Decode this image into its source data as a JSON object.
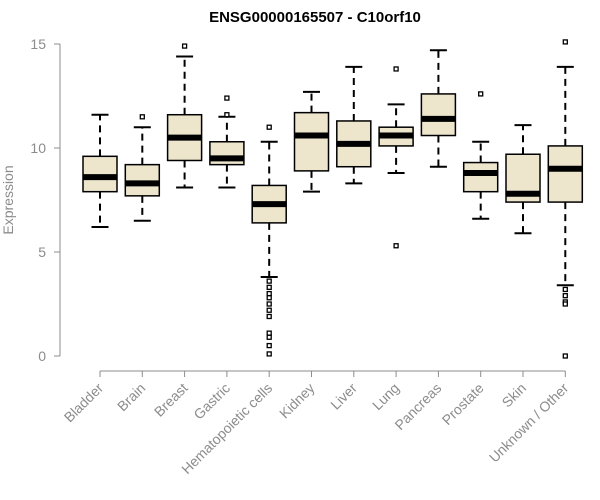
{
  "chart_data": {
    "type": "boxplot",
    "title": "ENSG00000165507 - C10orf10",
    "xlabel": "",
    "ylabel": "Expression",
    "ylim": [
      0,
      15
    ],
    "yticks": [
      0,
      5,
      10,
      15
    ],
    "box_fill": "#ede6cc",
    "stroke": "#000000",
    "axis_color": "#8c8c8c",
    "categories": [
      "Bladder",
      "Brain",
      "Breast",
      "Gastric",
      "Hematopoietic cells",
      "Kidney",
      "Liver",
      "Lung",
      "Pancreas",
      "Prostate",
      "Skin",
      "Unknown / Other"
    ],
    "boxes": [
      {
        "name": "Bladder",
        "min": 6.2,
        "q1": 7.9,
        "median": 8.6,
        "q3": 9.6,
        "max": 11.6,
        "outliers": []
      },
      {
        "name": "Brain",
        "min": 6.5,
        "q1": 7.7,
        "median": 8.3,
        "q3": 9.2,
        "max": 11.0,
        "outliers": [
          11.5
        ]
      },
      {
        "name": "Breast",
        "min": 8.1,
        "q1": 9.4,
        "median": 10.5,
        "q3": 11.6,
        "max": 14.4,
        "outliers": [
          14.9
        ]
      },
      {
        "name": "Gastric",
        "min": 8.1,
        "q1": 9.2,
        "median": 9.5,
        "q3": 10.3,
        "max": 11.5,
        "outliers": [
          11.6,
          12.4
        ]
      },
      {
        "name": "Hematopoietic cells",
        "min": 3.8,
        "q1": 6.4,
        "median": 7.3,
        "q3": 8.2,
        "max": 10.3,
        "outliers": [
          11.0,
          3.6,
          3.3,
          3.0,
          2.8,
          2.5,
          2.2,
          1.9,
          1.1,
          0.9,
          0.5,
          0.1
        ]
      },
      {
        "name": "Kidney",
        "min": 7.9,
        "q1": 8.9,
        "median": 10.6,
        "q3": 11.7,
        "max": 12.7,
        "outliers": []
      },
      {
        "name": "Liver",
        "min": 8.3,
        "q1": 9.1,
        "median": 10.2,
        "q3": 11.3,
        "max": 13.9,
        "outliers": []
      },
      {
        "name": "Lung",
        "min": 8.8,
        "q1": 10.1,
        "median": 10.6,
        "q3": 11.0,
        "max": 12.1,
        "outliers": [
          13.8,
          5.3
        ]
      },
      {
        "name": "Pancreas",
        "min": 9.1,
        "q1": 10.6,
        "median": 11.4,
        "q3": 12.6,
        "max": 14.7,
        "outliers": []
      },
      {
        "name": "Prostate",
        "min": 6.6,
        "q1": 7.9,
        "median": 8.8,
        "q3": 9.3,
        "max": 10.3,
        "outliers": [
          12.6
        ]
      },
      {
        "name": "Skin",
        "min": 5.9,
        "q1": 7.4,
        "median": 7.8,
        "q3": 9.7,
        "max": 11.1,
        "outliers": []
      },
      {
        "name": "Unknown / Other",
        "min": 3.4,
        "q1": 7.4,
        "median": 9.0,
        "q3": 10.1,
        "max": 13.9,
        "outliers": [
          15.1,
          3.2,
          2.9,
          2.6,
          2.5,
          0.0
        ]
      }
    ]
  }
}
